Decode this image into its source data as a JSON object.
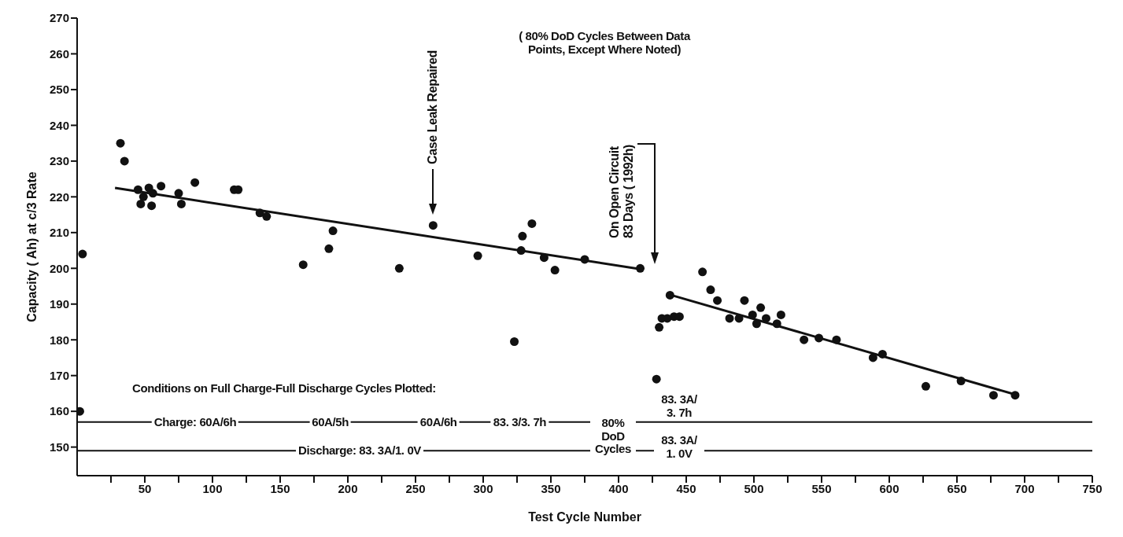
{
  "chart_data": {
    "type": "scatter",
    "xlabel": "Test Cycle Number",
    "ylabel": "Capacity ( Ah)  at c/3 Rate",
    "marker": "circle",
    "xlim": [
      0,
      750
    ],
    "ylim": [
      142,
      270
    ],
    "xticks": [
      {
        "value": 25,
        "label": null
      },
      50,
      {
        "value": 75,
        "label": null
      },
      100,
      {
        "value": 125,
        "label": null
      },
      150,
      {
        "value": 175,
        "label": null
      },
      200,
      {
        "value": 225,
        "label": null
      },
      250,
      {
        "value": 275,
        "label": null
      },
      300,
      {
        "value": 325,
        "label": null
      },
      350,
      {
        "value": 375,
        "label": null
      },
      400,
      {
        "value": 425,
        "label": null
      },
      450,
      {
        "value": 475,
        "label": null
      },
      500,
      {
        "value": 525,
        "label": null
      },
      550,
      {
        "value": 575,
        "label": null
      },
      600,
      {
        "value": 625,
        "label": null
      },
      650,
      {
        "value": 675,
        "label": null
      },
      700,
      {
        "value": 725,
        "label": null
      },
      750
    ],
    "yticks": [
      150,
      160,
      170,
      180,
      190,
      200,
      210,
      220,
      230,
      240,
      250,
      260,
      270
    ],
    "series": [
      {
        "color": "#111111",
        "x": [
          2,
          4,
          32,
          35,
          45,
          47,
          49,
          53,
          55,
          56,
          62,
          75,
          77,
          87,
          116,
          119,
          135,
          140,
          167,
          186,
          189,
          238,
          263,
          296,
          323,
          328,
          329,
          336,
          345,
          353,
          375,
          416,
          428,
          430,
          432,
          436,
          441,
          445,
          438,
          462,
          468,
          473,
          482,
          489,
          493,
          499,
          502,
          505,
          509,
          517,
          520,
          537,
          548,
          561,
          588,
          595,
          627,
          653,
          677,
          693
        ],
        "values": [
          160,
          204,
          235,
          230,
          222,
          218,
          220,
          222.5,
          217.5,
          221,
          223,
          221,
          218,
          224,
          222,
          222,
          215.5,
          214.5,
          201,
          205.5,
          210.5,
          200,
          212,
          203.5,
          179.5,
          205,
          209,
          212.5,
          203,
          199.5,
          202.5,
          200,
          169,
          183.5,
          186,
          186,
          186.5,
          186.5,
          192.5,
          199,
          194,
          191,
          186,
          186,
          191,
          187,
          184.5,
          189,
          186,
          184.5,
          187,
          180,
          180.5,
          180,
          175,
          176,
          167,
          168.5,
          164.5,
          164.5
        ]
      },
      {
        "type": "line",
        "marker": "none",
        "color": "#111111",
        "x": [
          28,
          416
        ],
        "values": [
          222.5,
          199.8
        ]
      },
      {
        "type": "line",
        "marker": "none",
        "color": "#111111",
        "x": [
          438,
          693
        ],
        "values": [
          192.6,
          164.7
        ]
      }
    ],
    "ref_lines": [
      {
        "axis": "y",
        "value": 157
      },
      {
        "axis": "y",
        "value": 149
      }
    ],
    "annotations": [
      "( 80% DoD Cycles Between Data Points, Except Where Noted)",
      "Conditions on Full Charge-Full Discharge Cycles Plotted:",
      "Case Leak Repaired",
      "On Open Circuit 83 Days ( 1992h)",
      "80% DoD Cycles",
      "83. 3A/ 3. 7h",
      "83. 3A/ 1. 0V",
      "Charge: 60A/6h",
      "Discharge: 83. 3A/1. 0V",
      {
        "text": "60A/5h",
        "x": 187,
        "y": 157
      },
      {
        "text": "60A/6h",
        "x": 267,
        "y": 157
      },
      {
        "text": "83. 3/3. 7h",
        "x": 327,
        "y": 157
      }
    ]
  }
}
